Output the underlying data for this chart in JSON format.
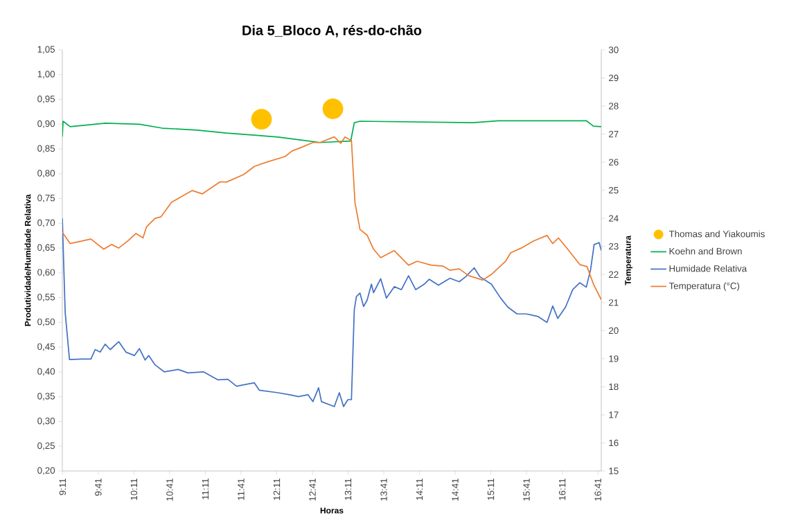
{
  "chart_data": {
    "type": "line",
    "title": "Dia 5_Bloco A, rés-do-chão",
    "xlabel": "Horas",
    "ylabel": "Produtividade/Humidade Relativa",
    "y2label": "Temperatura",
    "xlim": [
      9.18,
      16.73
    ],
    "xticks": [
      {
        "value": 9.1833,
        "label": "9:11"
      },
      {
        "value": 9.6833,
        "label": "9:41"
      },
      {
        "value": 10.1833,
        "label": "10:11"
      },
      {
        "value": 10.6833,
        "label": "10:41"
      },
      {
        "value": 11.1833,
        "label": "11:11"
      },
      {
        "value": 11.6833,
        "label": "11:41"
      },
      {
        "value": 12.1833,
        "label": "12:11"
      },
      {
        "value": 12.6833,
        "label": "12:41"
      },
      {
        "value": 13.1833,
        "label": "13:11"
      },
      {
        "value": 13.6833,
        "label": "13:41"
      },
      {
        "value": 14.1833,
        "label": "14:11"
      },
      {
        "value": 14.6833,
        "label": "14:41"
      },
      {
        "value": 15.1833,
        "label": "15:11"
      },
      {
        "value": 15.6833,
        "label": "15:41"
      },
      {
        "value": 16.1833,
        "label": "16:11"
      },
      {
        "value": 16.6833,
        "label": "16:41"
      }
    ],
    "ylim": [
      0.2,
      1.05
    ],
    "yticks": [
      {
        "value": 0.2,
        "label": "0,20"
      },
      {
        "value": 0.25,
        "label": "0,25"
      },
      {
        "value": 0.3,
        "label": "0,30"
      },
      {
        "value": 0.35,
        "label": "0,35"
      },
      {
        "value": 0.4,
        "label": "0,40"
      },
      {
        "value": 0.45,
        "label": "0,45"
      },
      {
        "value": 0.5,
        "label": "0,50"
      },
      {
        "value": 0.55,
        "label": "0,55"
      },
      {
        "value": 0.6,
        "label": "0,60"
      },
      {
        "value": 0.65,
        "label": "0,65"
      },
      {
        "value": 0.7,
        "label": "0,70"
      },
      {
        "value": 0.75,
        "label": "0,75"
      },
      {
        "value": 0.8,
        "label": "0,80"
      },
      {
        "value": 0.85,
        "label": "0,85"
      },
      {
        "value": 0.9,
        "label": "0,90"
      },
      {
        "value": 0.95,
        "label": "0,95"
      },
      {
        "value": 1.0,
        "label": "1,00"
      },
      {
        "value": 1.05,
        "label": "1,05"
      }
    ],
    "y2lim": [
      15,
      30
    ],
    "y2ticks": [
      15,
      16,
      17,
      18,
      19,
      20,
      21,
      22,
      23,
      24,
      25,
      26,
      27,
      28,
      29,
      30
    ],
    "legend": "right",
    "series": [
      {
        "name": "Thomas and Yiakoumis",
        "type": "scatter",
        "marker": "circle",
        "color": "#ffc000",
        "x": [
          11.97,
          12.97
        ],
        "values": [
          0.91,
          0.931
        ]
      },
      {
        "name": "Koehn and Brown",
        "color": "#00b050",
        "x": [
          9.18,
          9.19,
          9.29,
          9.78,
          10.26,
          10.58,
          11.07,
          11.48,
          11.87,
          12.2,
          12.52,
          12.79,
          13.22,
          13.27,
          13.35,
          14.93,
          15.29,
          16.52,
          16.62,
          16.73
        ],
        "values": [
          0.875,
          0.906,
          0.895,
          0.902,
          0.9,
          0.892,
          0.888,
          0.882,
          0.878,
          0.874,
          0.868,
          0.863,
          0.866,
          0.903,
          0.906,
          0.903,
          0.907,
          0.907,
          0.896,
          0.895
        ]
      },
      {
        "name": "Humidade Relativa",
        "color": "#4472c4",
        "x": [
          9.18,
          9.19,
          9.22,
          9.28,
          9.45,
          9.58,
          9.64,
          9.71,
          9.78,
          9.85,
          9.97,
          10.07,
          10.19,
          10.26,
          10.34,
          10.39,
          10.48,
          10.61,
          10.8,
          10.94,
          11.16,
          11.36,
          11.5,
          11.62,
          11.87,
          11.94,
          12.2,
          12.36,
          12.49,
          12.62,
          12.69,
          12.77,
          12.81,
          12.99,
          13.06,
          13.12,
          13.18,
          13.23,
          13.27,
          13.3,
          13.35,
          13.4,
          13.45,
          13.51,
          13.54,
          13.64,
          13.72,
          13.83,
          13.93,
          14.03,
          14.13,
          14.25,
          14.32,
          14.45,
          14.61,
          14.74,
          14.83,
          14.95,
          15.03,
          15.19,
          15.32,
          15.42,
          15.55,
          15.68,
          15.84,
          15.97,
          16.05,
          16.12,
          16.23,
          16.33,
          16.43,
          16.52,
          16.58,
          16.63,
          16.7,
          16.73
        ],
        "values": [
          0.71,
          0.66,
          0.52,
          0.425,
          0.426,
          0.426,
          0.445,
          0.44,
          0.456,
          0.445,
          0.461,
          0.44,
          0.433,
          0.447,
          0.424,
          0.433,
          0.414,
          0.4,
          0.405,
          0.398,
          0.4,
          0.384,
          0.385,
          0.371,
          0.378,
          0.363,
          0.358,
          0.354,
          0.35,
          0.354,
          0.34,
          0.368,
          0.34,
          0.33,
          0.358,
          0.33,
          0.344,
          0.344,
          0.526,
          0.552,
          0.559,
          0.532,
          0.545,
          0.577,
          0.56,
          0.588,
          0.549,
          0.572,
          0.566,
          0.594,
          0.566,
          0.577,
          0.587,
          0.575,
          0.589,
          0.582,
          0.592,
          0.61,
          0.592,
          0.577,
          0.549,
          0.531,
          0.517,
          0.517,
          0.512,
          0.5,
          0.533,
          0.508,
          0.531,
          0.566,
          0.58,
          0.571,
          0.606,
          0.657,
          0.661,
          0.645
        ]
      },
      {
        "name": "Temperatura (°C)",
        "axis": "y2",
        "color": "#ed7d31",
        "x": [
          9.18,
          9.29,
          9.58,
          9.76,
          9.87,
          9.97,
          10.1,
          10.21,
          10.31,
          10.36,
          10.48,
          10.56,
          10.71,
          10.8,
          11.0,
          11.14,
          11.39,
          11.48,
          11.72,
          11.87,
          12.04,
          12.3,
          12.4,
          12.55,
          12.69,
          12.79,
          12.94,
          12.99,
          13.08,
          13.14,
          13.23,
          13.28,
          13.35,
          13.45,
          13.54,
          13.64,
          13.83,
          14.03,
          14.15,
          14.35,
          14.51,
          14.61,
          14.74,
          14.87,
          15.07,
          15.19,
          15.39,
          15.46,
          15.61,
          15.78,
          15.97,
          16.05,
          16.13,
          16.26,
          16.43,
          16.53,
          16.62,
          16.73
        ],
        "values": [
          23.5,
          23.1,
          23.26,
          22.9,
          23.07,
          22.94,
          23.2,
          23.46,
          23.3,
          23.7,
          24.0,
          24.05,
          24.57,
          24.7,
          24.99,
          24.87,
          25.3,
          25.29,
          25.56,
          25.85,
          26.0,
          26.2,
          26.4,
          26.55,
          26.7,
          26.7,
          26.85,
          26.9,
          26.67,
          26.9,
          26.77,
          24.55,
          23.6,
          23.4,
          22.9,
          22.6,
          22.85,
          22.33,
          22.47,
          22.33,
          22.3,
          22.15,
          22.2,
          21.96,
          21.8,
          22.0,
          22.47,
          22.77,
          22.94,
          23.19,
          23.39,
          23.1,
          23.3,
          22.9,
          22.35,
          22.28,
          21.66,
          21.1
        ]
      }
    ]
  }
}
